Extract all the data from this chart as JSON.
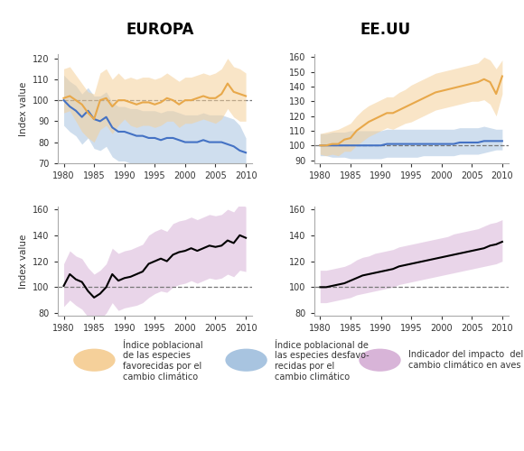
{
  "titles": [
    "EUROPA",
    "EE.UU"
  ],
  "years": [
    1980,
    1981,
    1982,
    1983,
    1984,
    1985,
    1986,
    1987,
    1988,
    1989,
    1990,
    1991,
    1992,
    1993,
    1994,
    1995,
    1996,
    1997,
    1998,
    1999,
    2000,
    2001,
    2002,
    2003,
    2004,
    2005,
    2006,
    2007,
    2008,
    2009,
    2010
  ],
  "europa_orange_mean": [
    101,
    102,
    100,
    98,
    94,
    91,
    100,
    101,
    97,
    100,
    100,
    99,
    98,
    99,
    99,
    98,
    99,
    101,
    100,
    98,
    100,
    100,
    101,
    102,
    101,
    101,
    103,
    108,
    104,
    103,
    102
  ],
  "europa_orange_low": [
    94,
    95,
    90,
    85,
    82,
    80,
    86,
    88,
    84,
    88,
    91,
    88,
    87,
    88,
    88,
    87,
    88,
    90,
    90,
    87,
    89,
    89,
    90,
    91,
    90,
    89,
    91,
    96,
    92,
    90,
    90
  ],
  "europa_orange_high": [
    115,
    116,
    112,
    108,
    104,
    103,
    113,
    115,
    110,
    113,
    110,
    111,
    110,
    111,
    111,
    110,
    111,
    113,
    111,
    109,
    111,
    111,
    112,
    113,
    112,
    113,
    115,
    120,
    116,
    115,
    113
  ],
  "europa_blue_mean": [
    100,
    97,
    95,
    92,
    95,
    91,
    90,
    92,
    87,
    85,
    85,
    84,
    83,
    83,
    82,
    82,
    81,
    82,
    82,
    81,
    80,
    80,
    80,
    81,
    80,
    80,
    80,
    79,
    78,
    76,
    75
  ],
  "europa_blue_low": [
    88,
    85,
    83,
    79,
    82,
    77,
    76,
    78,
    73,
    71,
    71,
    70,
    68,
    68,
    67,
    67,
    66,
    67,
    67,
    66,
    65,
    65,
    65,
    66,
    65,
    65,
    65,
    64,
    63,
    61,
    68
  ],
  "europa_blue_high": [
    112,
    109,
    107,
    103,
    106,
    102,
    102,
    104,
    99,
    97,
    97,
    96,
    96,
    95,
    95,
    95,
    94,
    95,
    95,
    94,
    93,
    93,
    93,
    94,
    93,
    93,
    93,
    92,
    91,
    88,
    82
  ],
  "eeu_orange_mean": [
    100,
    100,
    101,
    101,
    104,
    105,
    110,
    113,
    116,
    118,
    120,
    122,
    122,
    124,
    126,
    128,
    130,
    132,
    134,
    136,
    137,
    138,
    139,
    140,
    141,
    142,
    143,
    145,
    143,
    135,
    147
  ],
  "eeu_orange_low": [
    94,
    93,
    94,
    93,
    96,
    96,
    100,
    103,
    106,
    108,
    110,
    112,
    111,
    113,
    115,
    116,
    118,
    120,
    122,
    124,
    125,
    126,
    127,
    128,
    129,
    130,
    130,
    131,
    128,
    120,
    135
  ],
  "eeu_orange_high": [
    108,
    109,
    110,
    111,
    113,
    115,
    120,
    124,
    127,
    129,
    131,
    133,
    133,
    136,
    138,
    141,
    143,
    145,
    147,
    149,
    150,
    151,
    152,
    153,
    154,
    155,
    156,
    160,
    158,
    152,
    158
  ],
  "eeu_blue_mean": [
    100,
    100,
    100,
    100,
    100,
    100,
    100,
    100,
    100,
    100,
    100,
    101,
    101,
    101,
    101,
    101,
    101,
    101,
    101,
    101,
    101,
    101,
    101,
    102,
    102,
    102,
    102,
    103,
    103,
    103,
    103
  ],
  "eeu_blue_low": [
    93,
    93,
    92,
    92,
    92,
    91,
    91,
    91,
    91,
    91,
    91,
    92,
    92,
    92,
    92,
    92,
    92,
    93,
    93,
    93,
    93,
    93,
    93,
    94,
    94,
    94,
    94,
    95,
    96,
    97,
    97
  ],
  "eeu_blue_high": [
    108,
    108,
    109,
    109,
    109,
    110,
    110,
    110,
    110,
    110,
    110,
    111,
    111,
    111,
    111,
    111,
    111,
    111,
    111,
    111,
    111,
    111,
    111,
    112,
    112,
    112,
    112,
    113,
    112,
    111,
    111
  ],
  "europa_black_mean": [
    101,
    110,
    106,
    104,
    97,
    92,
    95,
    100,
    110,
    105,
    107,
    108,
    110,
    112,
    118,
    120,
    122,
    120,
    125,
    127,
    128,
    130,
    128,
    130,
    132,
    131,
    132,
    136,
    134,
    140,
    138
  ],
  "europa_black_low": [
    85,
    90,
    86,
    83,
    77,
    72,
    75,
    80,
    88,
    82,
    84,
    85,
    86,
    88,
    92,
    95,
    97,
    96,
    100,
    102,
    103,
    105,
    103,
    105,
    107,
    106,
    107,
    110,
    108,
    113,
    112
  ],
  "europa_black_high": [
    118,
    128,
    124,
    122,
    115,
    110,
    113,
    118,
    130,
    126,
    128,
    129,
    131,
    133,
    140,
    143,
    145,
    143,
    149,
    151,
    152,
    154,
    152,
    154,
    156,
    155,
    156,
    160,
    158,
    164,
    162
  ],
  "eeu_black_mean": [
    100,
    100,
    101,
    102,
    103,
    105,
    107,
    109,
    110,
    111,
    112,
    113,
    114,
    116,
    117,
    118,
    119,
    120,
    121,
    122,
    123,
    124,
    125,
    126,
    127,
    128,
    129,
    130,
    132,
    133,
    135
  ],
  "eeu_black_low": [
    88,
    88,
    89,
    90,
    91,
    92,
    94,
    95,
    96,
    97,
    98,
    99,
    100,
    102,
    103,
    104,
    105,
    106,
    107,
    108,
    109,
    110,
    111,
    112,
    113,
    114,
    115,
    116,
    117,
    118,
    120
  ],
  "eeu_black_high": [
    113,
    113,
    114,
    115,
    116,
    118,
    121,
    123,
    124,
    126,
    127,
    128,
    129,
    131,
    132,
    133,
    134,
    135,
    136,
    137,
    138,
    139,
    141,
    142,
    143,
    144,
    145,
    147,
    149,
    150,
    152
  ],
  "orange_color": "#E8A84A",
  "orange_fill": "#F5D09A",
  "blue_color": "#4472C4",
  "blue_fill": "#A8C4E0",
  "black_color": "#000000",
  "purple_fill": "#D8B4D8",
  "legend_labels": [
    "Índice poblacional\nde las especies\nfavorecidas por el\ncambio climático",
    "Índice poblacional de\nlas especies desfavo-\nrecidas por el\ncambio climático",
    "Indicador del impacto  del\ncambio climático en aves"
  ]
}
